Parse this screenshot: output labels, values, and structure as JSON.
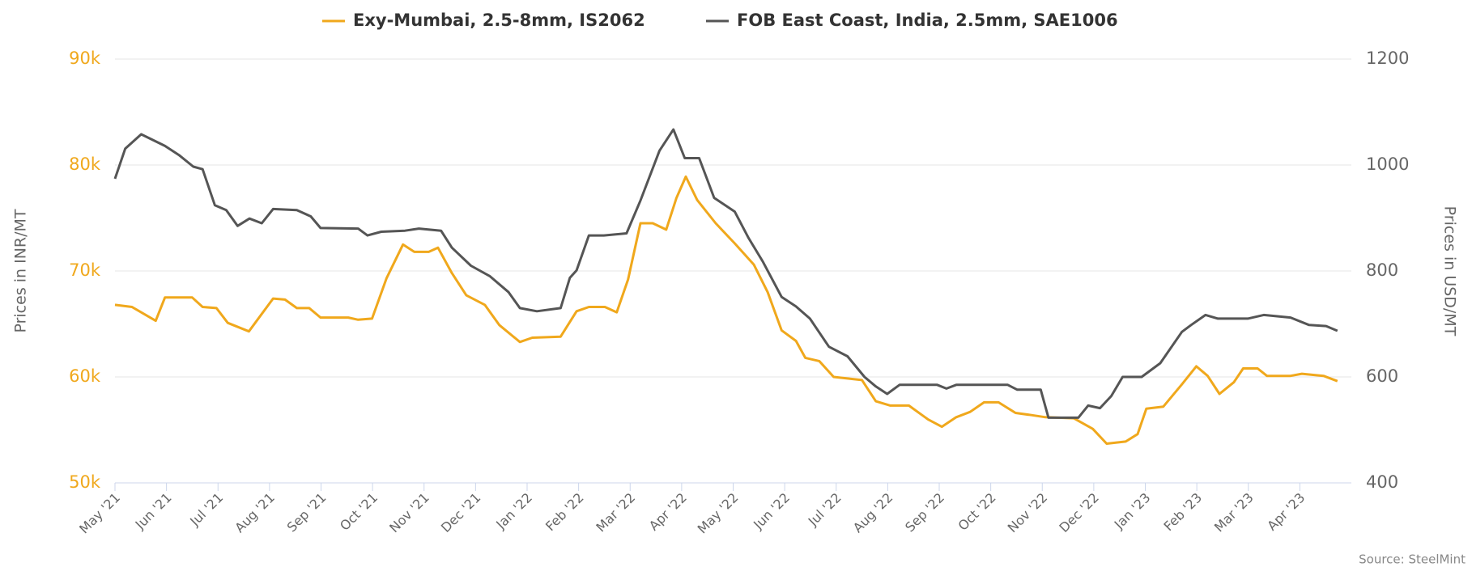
{
  "chart_data": {
    "type": "line",
    "legend_position": "top",
    "y_label": "Prices in INR/MT",
    "y2_label": "Prices in USD/MT",
    "source": "Source: SteelMint",
    "grid": true,
    "xlim": [
      0,
      24
    ],
    "xticks": [
      {
        "value": 0,
        "label": "May '21"
      },
      {
        "value": 1,
        "label": "Jun '21"
      },
      {
        "value": 2,
        "label": "Jul '21"
      },
      {
        "value": 3,
        "label": "Aug '21"
      },
      {
        "value": 4,
        "label": "Sep '21"
      },
      {
        "value": 5,
        "label": "Oct '21"
      },
      {
        "value": 6,
        "label": "Nov '21"
      },
      {
        "value": 7,
        "label": "Dec '21"
      },
      {
        "value": 8,
        "label": "Jan '22"
      },
      {
        "value": 9,
        "label": "Feb '22"
      },
      {
        "value": 10,
        "label": "Mar '22"
      },
      {
        "value": 11,
        "label": "Apr '22"
      },
      {
        "value": 12,
        "label": "May '22"
      },
      {
        "value": 13,
        "label": "Jun '22"
      },
      {
        "value": 14,
        "label": "Jul '22"
      },
      {
        "value": 15,
        "label": "Aug '22"
      },
      {
        "value": 16,
        "label": "Sep '22"
      },
      {
        "value": 17,
        "label": "Oct '22"
      },
      {
        "value": 18,
        "label": "Nov '22"
      },
      {
        "value": 19,
        "label": "Dec '22"
      },
      {
        "value": 20,
        "label": "Jan '23"
      },
      {
        "value": 21,
        "label": "Feb '23"
      },
      {
        "value": 22,
        "label": "Mar '23"
      },
      {
        "value": 23,
        "label": "Apr '23"
      }
    ],
    "ylim": [
      50000,
      90000
    ],
    "yticks": [
      {
        "value": 50000,
        "label": "50k"
      },
      {
        "value": 60000,
        "label": "60k"
      },
      {
        "value": 70000,
        "label": "70k"
      },
      {
        "value": 80000,
        "label": "80k"
      },
      {
        "value": 90000,
        "label": "90k"
      }
    ],
    "y2lim": [
      400,
      1200
    ],
    "y2ticks": [
      400,
      600,
      800,
      1000,
      1200
    ],
    "series": [
      {
        "name": "Exy-Mumbai, 2.5-8mm, IS2062",
        "color": "#f0a81c",
        "x": [
          0,
          0.33,
          0.79,
          0.97,
          1.5,
          1.7,
          1.97,
          2.19,
          2.6,
          3.07,
          3.3,
          3.53,
          3.77,
          3.99,
          4.53,
          4.72,
          4.99,
          5.27,
          5.59,
          5.81,
          6.09,
          6.27,
          6.54,
          6.82,
          7.18,
          7.46,
          7.86,
          8.1,
          8.65,
          8.96,
          9.2,
          9.51,
          9.74,
          9.96,
          10.2,
          10.44,
          10.7,
          10.9,
          11.08,
          11.3,
          11.66,
          12.03,
          12.4,
          12.67,
          12.94,
          13.22,
          13.4,
          13.67,
          13.95,
          14.5,
          14.77,
          15.05,
          15.41,
          15.78,
          16.05,
          16.33,
          16.6,
          16.87,
          17.15,
          17.48,
          17.79,
          18.06,
          18.61,
          18.98,
          19.25,
          19.62,
          19.85,
          20.02,
          20.35,
          20.71,
          20.99,
          21.21,
          21.44,
          21.72,
          21.9,
          22.18,
          22.36,
          22.82,
          23.04,
          23.46,
          23.73
        ],
        "values": [
          66800,
          66600,
          65300,
          67500,
          67500,
          66600,
          66500,
          65100,
          64300,
          67400,
          67300,
          66500,
          66500,
          65600,
          65600,
          65400,
          65500,
          69300,
          72500,
          71800,
          71800,
          72200,
          69800,
          67700,
          66800,
          64900,
          63300,
          63700,
          63800,
          66200,
          66600,
          66600,
          66100,
          69200,
          74500,
          74500,
          73900,
          76900,
          78900,
          76700,
          74500,
          72600,
          70600,
          68000,
          64400,
          63400,
          61800,
          61500,
          60000,
          59700,
          57700,
          57300,
          57300,
          56000,
          55300,
          56200,
          56700,
          57600,
          57600,
          56600,
          56400,
          56200,
          56100,
          55100,
          53700,
          53900,
          54600,
          57000,
          57200,
          59300,
          61000,
          60100,
          58400,
          59500,
          60800,
          60800,
          60100,
          60100,
          60300,
          60100,
          59600
        ]
      },
      {
        "name": "FOB East Coast, India, 2.5mm, SAE1006",
        "color": "#555555",
        "axis": "y2",
        "x": [
          0,
          0.2,
          0.51,
          0.97,
          1.24,
          1.52,
          1.7,
          1.94,
          2.16,
          2.38,
          2.61,
          2.85,
          3.07,
          3.53,
          3.8,
          3.99,
          4.72,
          4.9,
          5.17,
          5.63,
          5.9,
          6.33,
          6.54,
          6.91,
          7.28,
          7.64,
          7.86,
          8.19,
          8.65,
          8.83,
          8.96,
          9.2,
          9.49,
          9.93,
          10.2,
          10.57,
          10.84,
          11.06,
          11.34,
          11.63,
          12.03,
          12.3,
          12.58,
          12.94,
          13.22,
          13.49,
          13.86,
          14.22,
          14.55,
          14.77,
          14.99,
          15.23,
          15.96,
          16.14,
          16.33,
          17.33,
          17.51,
          17.97,
          18.12,
          18.7,
          18.89,
          19.12,
          19.34,
          19.56,
          19.93,
          20.29,
          20.71,
          20.89,
          21.17,
          21.41,
          21.99,
          22.3,
          22.82,
          23.18,
          23.51,
          23.73
        ],
        "values": [
          974,
          1031,
          1058,
          1036,
          1019,
          997,
          992,
          924,
          915,
          885,
          899,
          890,
          917,
          915,
          903,
          881,
          880,
          867,
          874,
          876,
          880,
          876,
          844,
          810,
          790,
          760,
          730,
          724,
          730,
          787,
          801,
          867,
          867,
          871,
          933,
          1027,
          1067,
          1013,
          1013,
          938,
          912,
          862,
          817,
          751,
          733,
          710,
          657,
          639,
          600,
          582,
          568,
          585,
          585,
          578,
          585,
          585,
          576,
          576,
          523,
          523,
          546,
          541,
          564,
          600,
          600,
          626,
          685,
          698,
          717,
          710,
          710,
          717,
          712,
          698,
          696,
          687
        ]
      }
    ]
  }
}
